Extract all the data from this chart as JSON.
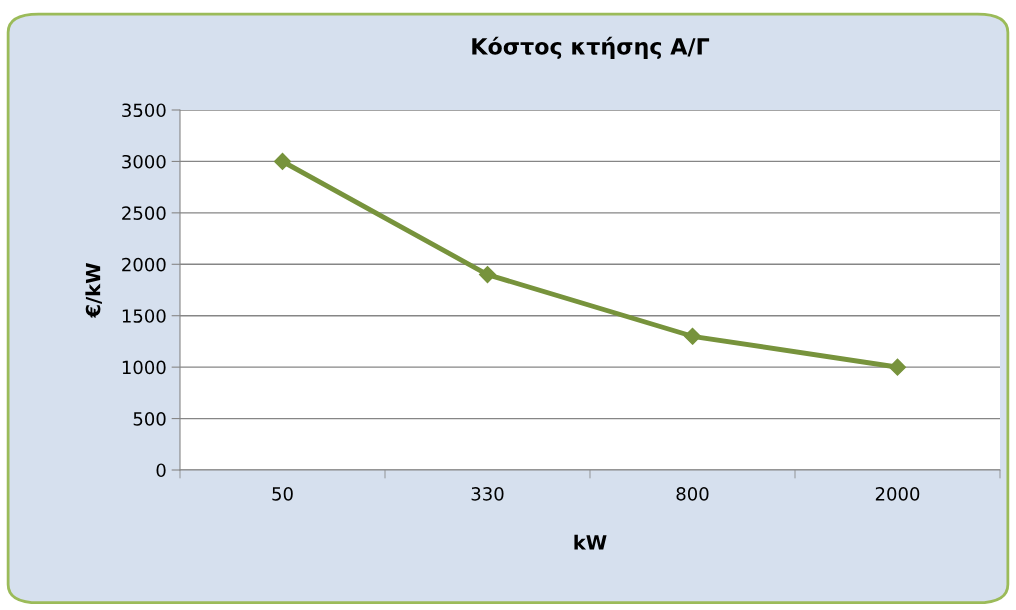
{
  "chart_data": {
    "type": "line",
    "title": "Κόστος κτήσης Α/Γ",
    "xlabel": "kW",
    "ylabel": "€/kW",
    "categories": [
      "50",
      "330",
      "800",
      "2000"
    ],
    "series": [
      {
        "color": "#77933c",
        "values": [
          3000,
          1900,
          1300,
          1000
        ]
      }
    ],
    "ylim": [
      0,
      3500
    ],
    "yticks": [
      0,
      500,
      1000,
      1500,
      2000,
      2500,
      3000,
      3500
    ],
    "grid": "y",
    "legend": false,
    "marker": "diamond",
    "line_style": "solid"
  }
}
